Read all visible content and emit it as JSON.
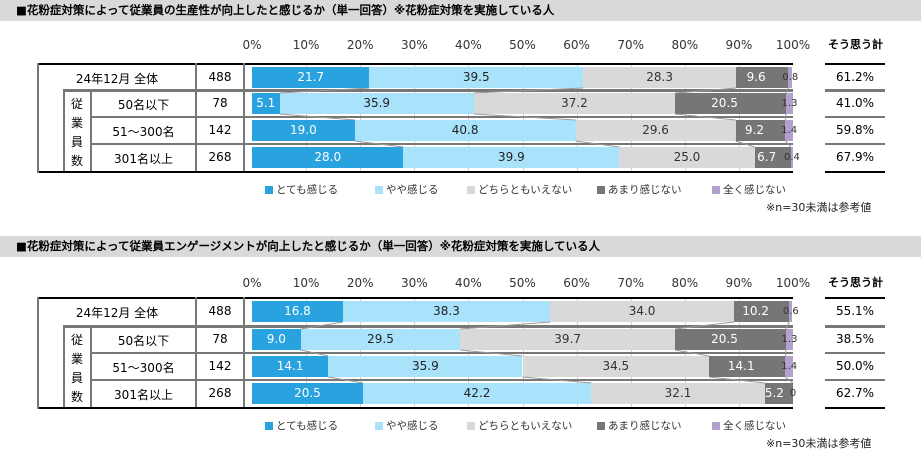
{
  "legend": [
    "とても感じる",
    "やや感じる",
    "どちらともいえない",
    "あまり感じない",
    "全く感じない"
  ],
  "colors": [
    "#29a3e0",
    "#a8e2fb",
    "#d9d9d9",
    "#767676",
    "#b4a0cc"
  ],
  "text_colors": [
    "#ffffff",
    "#222222",
    "#333333",
    "#ffffff",
    "#333333"
  ],
  "note": "※n=30未満は参考値",
  "sum_header": "そう思う計",
  "group_label": "従業員数",
  "chart_data": [
    {
      "type": "bar",
      "stacked": true,
      "orientation": "horizontal",
      "title": "■花粉症対策によって従業員の生産性が向上したと感じるか（単一回答）※花粉症対策を実施している人",
      "xlim": [
        0,
        100
      ],
      "ticks": [
        "0%",
        "10%",
        "20%",
        "30%",
        "40%",
        "50%",
        "60%",
        "70%",
        "80%",
        "90%",
        "100%"
      ],
      "categories": [
        "24年12月 全体",
        "50名以下",
        "51～300名",
        "301名以上"
      ],
      "n": [
        "488",
        "78",
        "142",
        "268"
      ],
      "series_values": [
        [
          21.7,
          39.5,
          28.3,
          9.6,
          0.8
        ],
        [
          5.1,
          35.9,
          37.2,
          20.5,
          1.3
        ],
        [
          19.0,
          40.8,
          29.6,
          9.2,
          1.4
        ],
        [
          28.0,
          39.9,
          25.0,
          6.7,
          0.4
        ]
      ],
      "labels": [
        [
          "21.7",
          "39.5",
          "28.3",
          "9.6",
          "0.8"
        ],
        [
          "5.1",
          "35.9",
          "37.2",
          "20.5",
          "1.3"
        ],
        [
          "19.0",
          "40.8",
          "29.6",
          "9.2",
          "1.4"
        ],
        [
          "28.0",
          "39.9",
          "25.0",
          "6.7",
          "0.4"
        ]
      ],
      "sum": [
        "61.2%",
        "41.0%",
        "59.8%",
        "67.9%"
      ]
    },
    {
      "type": "bar",
      "stacked": true,
      "orientation": "horizontal",
      "title": "■花粉症対策によって従業員エンゲージメントが向上したと感じるか（単一回答）※花粉症対策を実施している人",
      "xlim": [
        0,
        100
      ],
      "ticks": [
        "0%",
        "10%",
        "20%",
        "30%",
        "40%",
        "50%",
        "60%",
        "70%",
        "80%",
        "90%",
        "100%"
      ],
      "categories": [
        "24年12月 全体",
        "50名以下",
        "51～300名",
        "301名以上"
      ],
      "n": [
        "488",
        "78",
        "142",
        "268"
      ],
      "series_values": [
        [
          16.8,
          38.3,
          34.0,
          10.2,
          0.6
        ],
        [
          9.0,
          29.5,
          39.7,
          20.5,
          1.3
        ],
        [
          14.1,
          35.9,
          34.5,
          14.1,
          1.4
        ],
        [
          20.5,
          42.2,
          32.1,
          5.2,
          0.0
        ]
      ],
      "labels": [
        [
          "16.8",
          "38.3",
          "34.0",
          "10.2",
          "0.6"
        ],
        [
          "9.0",
          "29.5",
          "39.7",
          "20.5",
          "1.3"
        ],
        [
          "14.1",
          "35.9",
          "34.5",
          "14.1",
          "1.4"
        ],
        [
          "20.5",
          "42.2",
          "32.1",
          "5.2",
          "0"
        ]
      ],
      "sum": [
        "55.1%",
        "38.5%",
        "50.0%",
        "62.7%"
      ]
    }
  ]
}
